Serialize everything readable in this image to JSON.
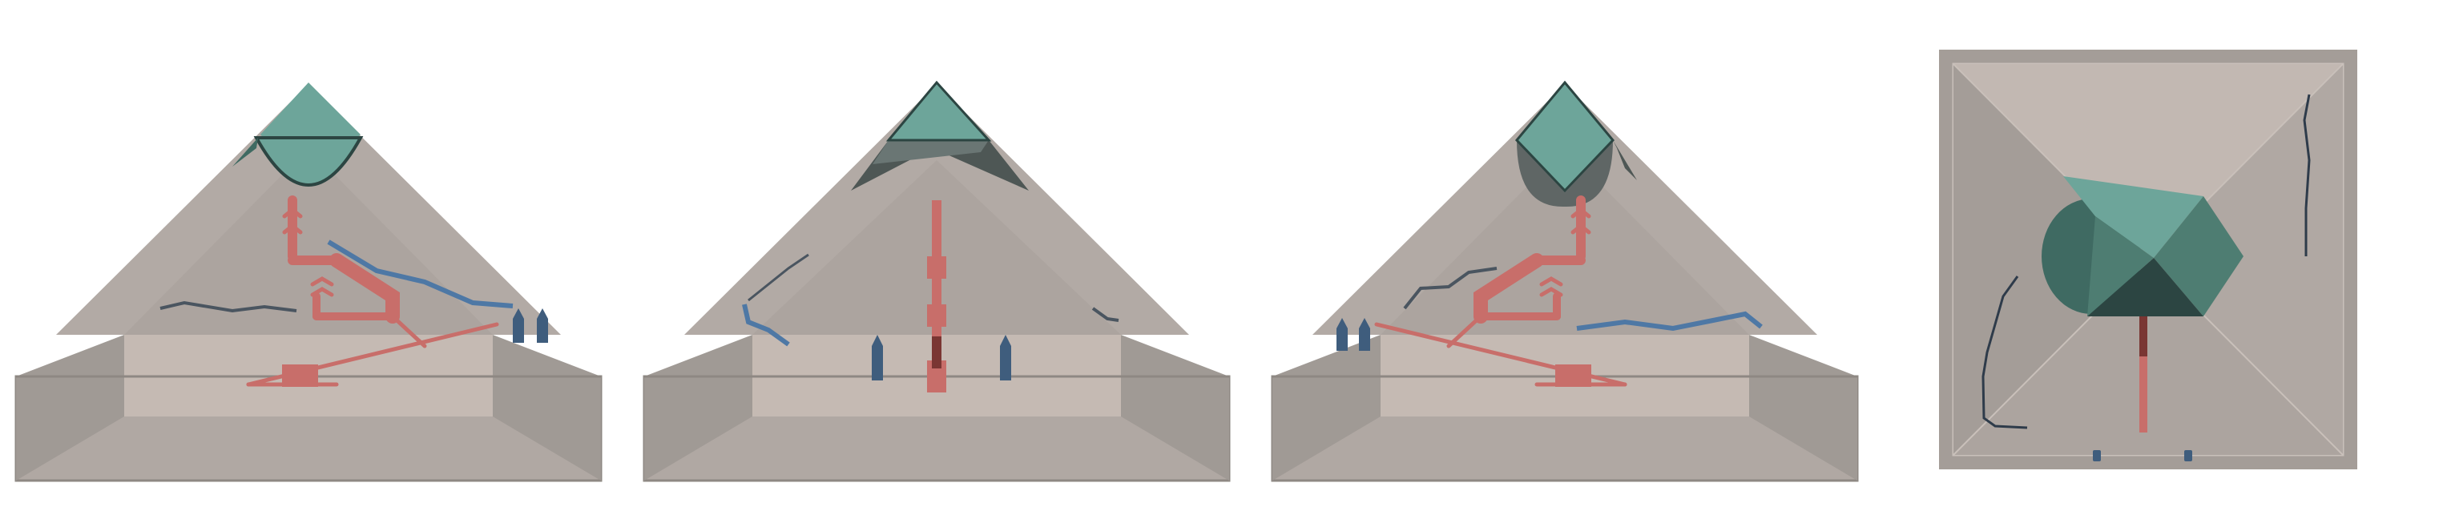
{
  "figure": {
    "panels": [
      {
        "view": "side-section-a",
        "features": [
          "capstone",
          "cap-dome",
          "inner-room",
          "ascending-passages",
          "descending-passage",
          "base-chamber",
          "fractures",
          "entrance-posts"
        ]
      },
      {
        "view": "side-section-b",
        "features": [
          "capstone",
          "cap-dome",
          "inner-room",
          "central-shaft",
          "fractures",
          "entrance-posts"
        ]
      },
      {
        "view": "side-section-c",
        "features": [
          "capstone",
          "cap-dome",
          "inner-room",
          "ascending-passages",
          "descending-passage",
          "base-chamber",
          "fractures",
          "entrance-posts"
        ]
      },
      {
        "view": "top-plan",
        "features": [
          "capstone",
          "cap-dome",
          "central-shaft",
          "fractures",
          "entrance-posts"
        ]
      }
    ]
  },
  "colors": {
    "background": "#ffffff",
    "stone_light": "#c2b8b2",
    "stone_mid": "#b2aaa5",
    "stone_dark": "#a09a95",
    "base_top": "#c5bab3",
    "edge_stroke": "#8e8883",
    "capstone": "#6da59a",
    "capstone_dark": "#3f6a62",
    "capstone_deep": "#2c4542",
    "passage": "#c86e6a",
    "passage_dark": "#7a3633",
    "fracture_blue": "#4e78a5",
    "fracture_dark": "#4a5560",
    "post": "#3f5d7d"
  }
}
